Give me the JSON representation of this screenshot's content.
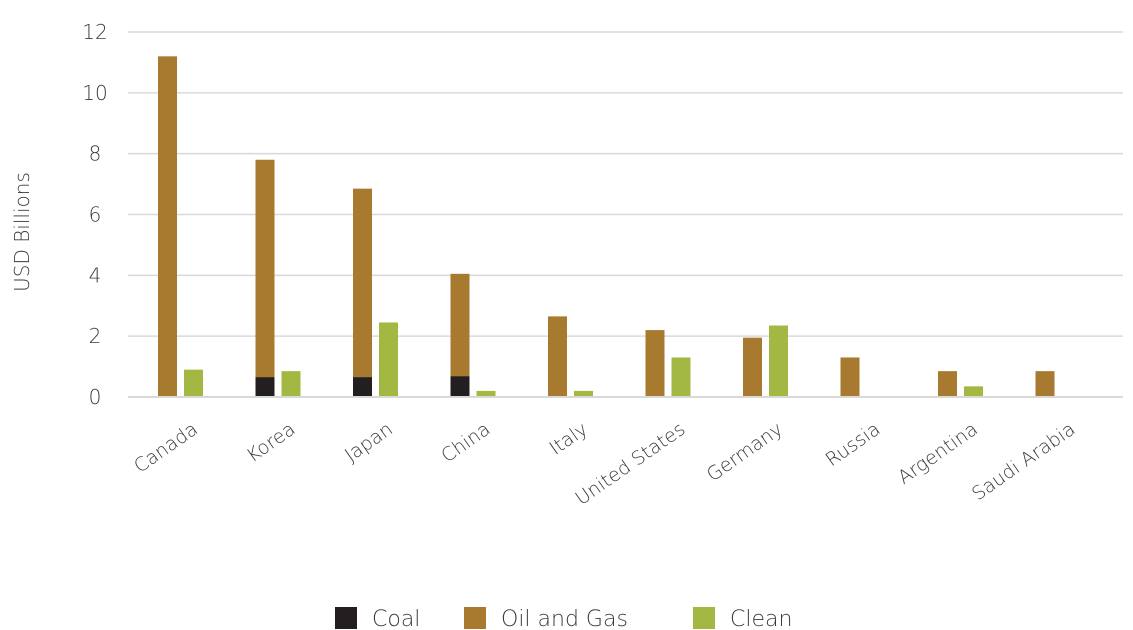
{
  "chart_data": {
    "type": "bar",
    "title": "",
    "xlabel": "",
    "ylabel": "USD Billions",
    "ylim": [
      0,
      12
    ],
    "yticks": [
      0,
      2,
      4,
      6,
      8,
      10,
      12
    ],
    "grid": true,
    "legend_position": "bottom",
    "categories": [
      "Canada",
      "Korea",
      "Japan",
      "China",
      "Italy",
      "United States",
      "Germany",
      "Russia",
      "Argentina",
      "Saudi Arabia"
    ],
    "series": [
      {
        "name": "Coal",
        "color": "#231f20",
        "values": [
          0,
          0.65,
          0.65,
          0.68,
          0,
          0,
          0,
          0,
          0,
          0
        ]
      },
      {
        "name": "Oil and Gas",
        "color": "#a87a2f",
        "values": [
          11.2,
          7.8,
          6.85,
          4.05,
          2.65,
          2.2,
          1.95,
          1.3,
          0.85,
          0.85
        ]
      },
      {
        "name": "Clean",
        "color": "#a2b843",
        "values": [
          0.9,
          0.85,
          2.45,
          0.2,
          0.2,
          1.3,
          2.35,
          0,
          0.35,
          0
        ]
      }
    ]
  }
}
